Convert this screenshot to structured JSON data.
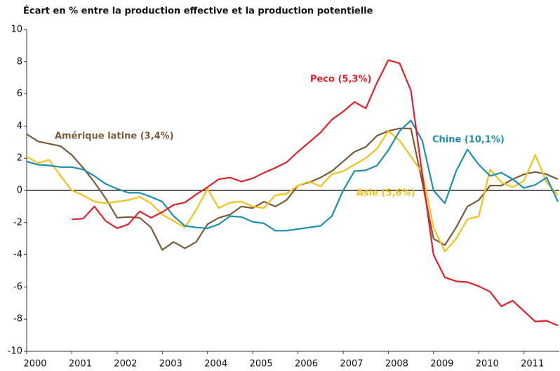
{
  "chart_data": {
    "type": "line",
    "title": "Écart en % entre la production effective et la production potentielle",
    "x": [
      2000,
      2000.25,
      2000.5,
      2000.75,
      2001,
      2001.25,
      2001.5,
      2001.75,
      2002,
      2002.25,
      2002.5,
      2002.75,
      2003,
      2003.25,
      2003.5,
      2003.75,
      2004,
      2004.25,
      2004.5,
      2004.75,
      2005,
      2005.25,
      2005.5,
      2005.75,
      2006,
      2006.25,
      2006.5,
      2006.75,
      2007,
      2007.25,
      2007.5,
      2007.75,
      2008,
      2008.25,
      2008.5,
      2008.75,
      2009,
      2009.25,
      2009.5,
      2009.75,
      2010,
      2010.25,
      2010.5,
      2010.75,
      2011,
      2011.25,
      2011.5,
      2011.75
    ],
    "series": [
      {
        "name": "Amérique latine (3,4%)",
        "color": "#7a5c3a",
        "values": [
          3.5,
          3.05,
          2.9,
          2.75,
          2.2,
          1.4,
          0.5,
          -0.5,
          -1.7,
          -1.65,
          -1.7,
          -2.3,
          -3.7,
          -3.2,
          -3.6,
          -3.2,
          -2.1,
          -1.7,
          -1.5,
          -1.0,
          -1.1,
          -0.7,
          -1.0,
          -0.6,
          0.3,
          0.5,
          0.8,
          1.2,
          1.8,
          2.4,
          2.7,
          3.4,
          3.7,
          3.85,
          3.85,
          0.5,
          -3.0,
          -3.4,
          -2.3,
          -1.0,
          -0.6,
          0.3,
          0.3,
          0.7,
          1.0,
          1.15,
          1.0,
          0.7
        ]
      },
      {
        "name": "Asie (5,6%)",
        "color": "#f5c118",
        "values": [
          2.1,
          1.7,
          1.9,
          0.9,
          0.0,
          -0.3,
          -0.7,
          -0.8,
          -0.7,
          -0.6,
          -0.4,
          -0.8,
          -1.5,
          -1.9,
          -2.3,
          -1.2,
          0.1,
          -1.1,
          -0.75,
          -0.7,
          -1.0,
          -1.1,
          -0.3,
          -0.2,
          0.3,
          0.55,
          0.25,
          1.0,
          1.2,
          1.6,
          2.0,
          2.6,
          3.7,
          3.1,
          2.1,
          1.1,
          -2.3,
          -3.8,
          -3.0,
          -1.8,
          -1.6,
          1.3,
          0.5,
          0.2,
          0.6,
          2.2,
          0.5,
          -0.3
        ]
      },
      {
        "name": "Chine (10,1%)",
        "color": "#1a8fae",
        "values": [
          1.8,
          1.6,
          1.55,
          1.45,
          1.45,
          1.3,
          0.9,
          0.4,
          0.1,
          -0.15,
          -0.15,
          -0.4,
          -0.7,
          -1.6,
          -2.2,
          -2.3,
          -2.35,
          -2.1,
          -1.6,
          -1.65,
          -1.95,
          -2.05,
          -2.5,
          -2.5,
          -2.4,
          -2.3,
          -2.2,
          -1.6,
          0.0,
          1.2,
          1.25,
          1.55,
          2.5,
          3.7,
          4.35,
          3.1,
          0.0,
          -0.8,
          1.2,
          2.55,
          1.6,
          0.9,
          1.1,
          0.7,
          0.15,
          0.35,
          0.8,
          -0.7
        ]
      },
      {
        "name": "Peco (5,3%)",
        "color": "#e2202c",
        "values": [
          null,
          null,
          null,
          null,
          -1.8,
          -1.75,
          -1.0,
          -1.9,
          -2.35,
          -2.1,
          -1.3,
          -1.7,
          -1.35,
          -0.9,
          -0.75,
          -0.25,
          0.2,
          0.7,
          0.8,
          0.55,
          0.75,
          1.1,
          1.4,
          1.75,
          2.4,
          3.0,
          3.6,
          4.4,
          4.9,
          5.5,
          5.1,
          6.7,
          8.1,
          7.9,
          6.2,
          1.0,
          -4.0,
          -5.4,
          -5.65,
          -5.7,
          -5.95,
          -6.3,
          -7.2,
          -6.85,
          -7.5,
          -8.15,
          -8.1,
          -8.4
        ]
      }
    ],
    "xlim": [
      2000,
      2011.75
    ],
    "xticks": [
      2000,
      2001,
      2002,
      2003,
      2004,
      2005,
      2006,
      2007,
      2008,
      2009,
      2010,
      2011
    ],
    "ylim": [
      -10,
      10
    ],
    "yticks": [
      -10,
      -8,
      -6,
      -4,
      -2,
      0,
      2,
      4,
      6,
      8,
      10
    ]
  }
}
